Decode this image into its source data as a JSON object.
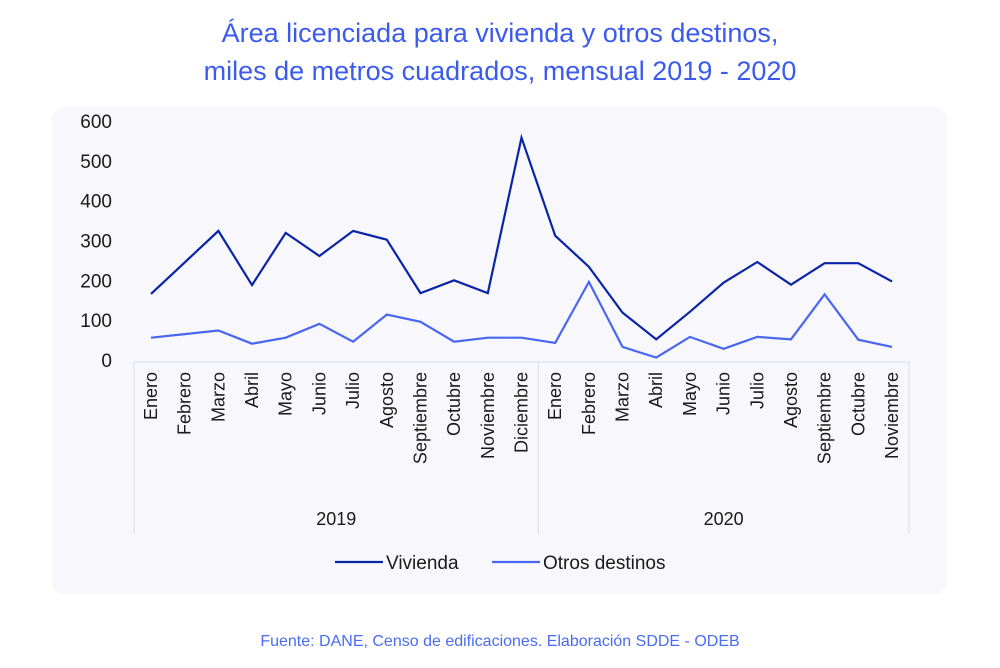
{
  "title_lines": [
    "Área licenciada para vivienda y otros destinos,",
    "miles de metros cuadrados, mensual 2019 - 2020"
  ],
  "source": "Fuente: DANE, Censo de edificaciones. Elaboración SDDE - ODEB",
  "chart_data": {
    "type": "line",
    "title": "Área licenciada para vivienda y otros destinos, miles de metros cuadrados, mensual 2019 - 2020",
    "xlabel": "",
    "ylabel": "",
    "ylim": [
      0,
      600
    ],
    "yticks": [
      0,
      100,
      200,
      300,
      400,
      500,
      600
    ],
    "grid": false,
    "legend_position": "bottom",
    "groups": [
      {
        "label": "2019",
        "months": [
          "Enero",
          "Febrero",
          "Marzo",
          "Abril",
          "Mayo",
          "Junio",
          "Julio",
          "Agosto",
          "Septiembre",
          "Octubre",
          "Noviembre",
          "Diciembre"
        ]
      },
      {
        "label": "2020",
        "months": [
          "Enero",
          "Febrero",
          "Marzo",
          "Abril",
          "Mayo",
          "Junio",
          "Julio",
          "Agosto",
          "Septiembre",
          "Octubre",
          "Noviembre"
        ]
      }
    ],
    "categories": [
      "Enero 2019",
      "Febrero 2019",
      "Marzo 2019",
      "Abril 2019",
      "Mayo 2019",
      "Junio 2019",
      "Julio 2019",
      "Agosto 2019",
      "Septiembre 2019",
      "Octubre 2019",
      "Noviembre 2019",
      "Diciembre 2019",
      "Enero 2020",
      "Febrero 2020",
      "Marzo 2020",
      "Abril 2020",
      "Mayo 2020",
      "Junio 2020",
      "Julio 2020",
      "Agosto 2020",
      "Septiembre 2020",
      "Octubre 2020",
      "Noviembre 2020"
    ],
    "series": [
      {
        "name": "Vivienda",
        "color": "#0a24a8",
        "values": [
          166,
          245,
          324,
          188,
          319,
          261,
          324,
          302,
          168,
          200,
          168,
          558,
          312,
          234,
          119,
          52,
          121,
          194,
          246,
          189,
          243,
          243,
          197
        ]
      },
      {
        "name": "Otros destinos",
        "color": "#4a66f0",
        "values": [
          56,
          65,
          74,
          41,
          56,
          91,
          46,
          114,
          96,
          46,
          56,
          56,
          43,
          196,
          33,
          6,
          58,
          28,
          58,
          52,
          165,
          51,
          33
        ]
      }
    ]
  }
}
